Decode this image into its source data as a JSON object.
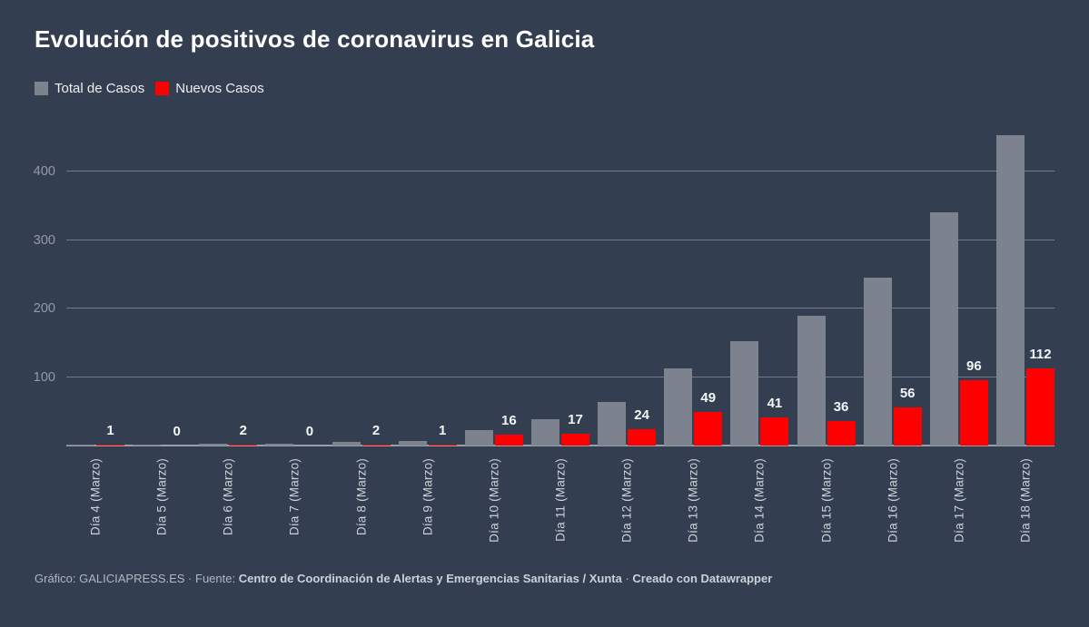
{
  "header": {
    "title": "Evolución de positivos de coronavirus en Galicia"
  },
  "legend": {
    "items": [
      {
        "label": "Total de Casos",
        "color": "#7c838f"
      },
      {
        "label": "Nuevos Casos",
        "color": "#ff0000"
      }
    ]
  },
  "chart_data": {
    "type": "bar",
    "title": "Evolución de positivos de coronavirus en Galicia",
    "categories": [
      "Día 4 (Marzo)",
      "Día 5 (Marzo)",
      "Día 6 (Marzo)",
      "Día 7 (Marzo)",
      "Día 8 (Marzo)",
      "Día 9 (Marzo)",
      "Día 10 (Marzo)",
      "Día 11 (Marzo)",
      "Día 12 (Marzo)",
      "Día 13 (Marzo)",
      "Día 14 (Marzo)",
      "Día 15 (Marzo)",
      "Día 16 (Marzo)",
      "Día 17 (Marzo)",
      "Día 18 (Marzo)"
    ],
    "series": [
      {
        "name": "Total de Casos",
        "color": "#7c838f",
        "values": [
          1,
          1,
          3,
          3,
          5,
          6,
          22,
          39,
          63,
          112,
          153,
          189,
          245,
          341,
          453
        ],
        "value_labels_shown": false
      },
      {
        "name": "Nuevos Casos",
        "color": "#ff0000",
        "values": [
          1,
          0,
          2,
          0,
          2,
          1,
          16,
          17,
          24,
          49,
          41,
          36,
          56,
          96,
          112
        ],
        "value_labels_shown": true
      }
    ],
    "xlabel": "",
    "ylabel": "",
    "ylim": [
      0,
      465
    ],
    "yticks": [
      100,
      200,
      300,
      400
    ],
    "grid": "horizontal",
    "legend_position": "top-left",
    "background_color": "#333e50"
  },
  "footer": {
    "parts": [
      {
        "name": "footer-credit",
        "text": "Gráfico: GALICIAPRESS.ES · Fuente: ",
        "bold": false,
        "interactable": false
      },
      {
        "name": "footer-source",
        "text": "Centro de Coordinación de Alertas y Emergencias Sanitarias / Xunta",
        "bold": true,
        "interactable": false
      },
      {
        "name": "footer-separator",
        "text": " · ",
        "bold": false,
        "interactable": false
      },
      {
        "name": "footer-datawrapper-link",
        "text": "Creado con Datawrapper",
        "bold": true,
        "interactable": true
      }
    ]
  }
}
